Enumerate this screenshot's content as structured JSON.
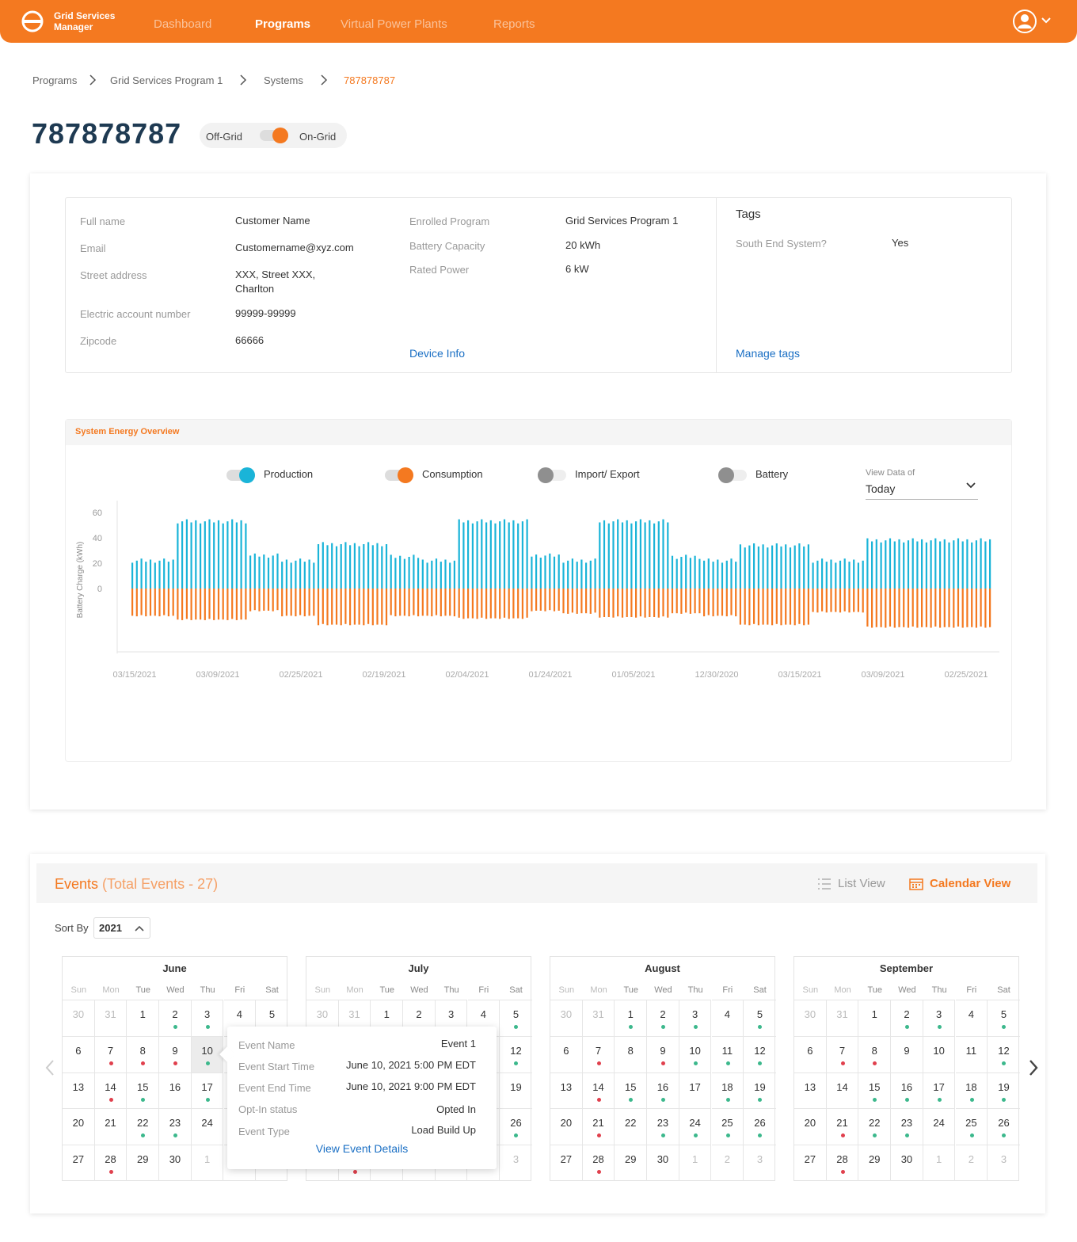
{
  "app": {
    "name_line1": "Grid Services",
    "name_line2": "Manager"
  },
  "nav": [
    {
      "label": "Dashboard",
      "active": false
    },
    {
      "label": "Programs",
      "active": true
    },
    {
      "label": "Virtual Power Plants",
      "active": false
    },
    {
      "label": "Reports",
      "active": false
    }
  ],
  "breadcrumb": [
    "Programs",
    "Grid Services Program 1",
    "Systems",
    "787878787"
  ],
  "system": {
    "id": "787878787",
    "toggle_off": "Off-Grid",
    "toggle_on": "On-Grid",
    "on_grid": true
  },
  "info": {
    "fields_left": [
      {
        "label": "Full name",
        "value": "Customer Name"
      },
      {
        "label": "Email",
        "value": "Customername@xyz.com"
      },
      {
        "label": "Street address",
        "value": "XXX, Street XXX,",
        "value2": "Charlton"
      },
      {
        "label": "Electric account number",
        "value": "99999-99999"
      },
      {
        "label": "Zipcode",
        "value": "66666"
      }
    ],
    "fields_mid": [
      {
        "label": "Enrolled Program",
        "value": "Grid Services Program 1"
      },
      {
        "label": "Battery Capacity",
        "value": "20 kWh"
      },
      {
        "label": "Rated Power",
        "value": "6 kW"
      }
    ],
    "device_link": "Device Info",
    "tags_title": "Tags",
    "tag": {
      "label": "South End System?",
      "value": "Yes"
    },
    "tags_link": "Manage tags"
  },
  "overview": {
    "title": "System Energy Overview",
    "legend": [
      {
        "label": "Production",
        "on": true,
        "color": "#1ab4d8"
      },
      {
        "label": "Consumption",
        "on": true,
        "color": "#f47920"
      },
      {
        "label": "Import/ Export",
        "on": false,
        "color": "#8f8f8f"
      },
      {
        "label": "Battery",
        "on": false,
        "color": "#8f8f8f"
      }
    ],
    "view_label": "View Data of",
    "view_value": "Today"
  },
  "chart_data": {
    "type": "bar",
    "ylabel": "Battery Charge (kWh)",
    "yticks": [
      0,
      20,
      40,
      60
    ],
    "ylim": [
      -35,
      60
    ],
    "xtick_labels": [
      "03/15/2021",
      "03/09/2021",
      "02/25/2021",
      "02/19/2021",
      "02/04/2021",
      "01/24/2021",
      "01/05/2021",
      "12/30/2020",
      "03/15/2021",
      "03/09/2021",
      "02/25/2021"
    ],
    "series": [
      {
        "name": "Production",
        "color": "#1ab4d8",
        "segments": [
          {
            "bars": 10,
            "value": 22
          },
          {
            "bars": 16,
            "value": 53
          },
          {
            "bars": 7,
            "value": 26
          },
          {
            "bars": 8,
            "value": 22
          },
          {
            "bars": 16,
            "value": 35
          },
          {
            "bars": 7,
            "value": 25
          },
          {
            "bars": 8,
            "value": 22
          },
          {
            "bars": 16,
            "value": 53
          },
          {
            "bars": 7,
            "value": 26
          },
          {
            "bars": 8,
            "value": 22
          },
          {
            "bars": 16,
            "value": 53
          },
          {
            "bars": 7,
            "value": 25
          },
          {
            "bars": 8,
            "value": 22
          },
          {
            "bars": 16,
            "value": 34
          },
          {
            "bars": 12,
            "value": 22
          },
          {
            "bars": 28,
            "value": 38
          }
        ]
      },
      {
        "name": "Consumption",
        "color": "#f47920",
        "segments": [
          {
            "bars": 10,
            "value": -21
          },
          {
            "bars": 16,
            "value": -24
          },
          {
            "bars": 7,
            "value": -17
          },
          {
            "bars": 8,
            "value": -21
          },
          {
            "bars": 16,
            "value": -28
          },
          {
            "bars": 7,
            "value": -21
          },
          {
            "bars": 8,
            "value": -21
          },
          {
            "bars": 16,
            "value": -23
          },
          {
            "bars": 7,
            "value": -17
          },
          {
            "bars": 8,
            "value": -19
          },
          {
            "bars": 16,
            "value": -22
          },
          {
            "bars": 7,
            "value": -19
          },
          {
            "bars": 8,
            "value": -21
          },
          {
            "bars": 16,
            "value": -28
          },
          {
            "bars": 12,
            "value": -18
          },
          {
            "bars": 28,
            "value": -30
          }
        ]
      }
    ]
  },
  "events": {
    "title": "Events",
    "total": "(Total Events - 27)",
    "list_view": "List View",
    "calendar_view": "Calendar View",
    "sort_label": "Sort By",
    "sort_value": "2021",
    "weekdays": [
      "Sun",
      "Mon",
      "Tue",
      "Wed",
      "Thu",
      "Fri",
      "Sat"
    ],
    "months": [
      {
        "name": "June",
        "days": [
          [
            "30",
            "",
            1
          ],
          [
            "31",
            "",
            1
          ],
          [
            "1",
            "",
            0
          ],
          [
            "2",
            "g",
            0
          ],
          [
            "3",
            "g",
            0
          ],
          [
            "4",
            "",
            0
          ],
          [
            "5",
            "",
            0
          ],
          [
            "6",
            "",
            0
          ],
          [
            "7",
            "r",
            0
          ],
          [
            "8",
            "r",
            0
          ],
          [
            "9",
            "r",
            0
          ],
          [
            "10",
            "g",
            2
          ],
          [
            "11",
            "",
            0
          ],
          [
            "12",
            "",
            0
          ],
          [
            "13",
            "",
            0
          ],
          [
            "14",
            "r",
            0
          ],
          [
            "15",
            "g",
            0
          ],
          [
            "16",
            "",
            0
          ],
          [
            "17",
            "g",
            0
          ],
          [
            "18",
            "",
            0
          ],
          [
            "19",
            "",
            0
          ],
          [
            "20",
            "",
            0
          ],
          [
            "21",
            "",
            0
          ],
          [
            "22",
            "g",
            0
          ],
          [
            "23",
            "g",
            0
          ],
          [
            "24",
            "",
            0
          ],
          [
            "25",
            "",
            0
          ],
          [
            "26",
            "",
            0
          ],
          [
            "27",
            "",
            0
          ],
          [
            "28",
            "r",
            0
          ],
          [
            "29",
            "",
            0
          ],
          [
            "30",
            "",
            0
          ],
          [
            "1",
            "",
            1
          ],
          [
            "2",
            "",
            1
          ],
          [
            "3",
            "",
            1
          ]
        ]
      },
      {
        "name": "July",
        "days": [
          [
            "30",
            "",
            1
          ],
          [
            "31",
            "",
            1
          ],
          [
            "1",
            "",
            0
          ],
          [
            "2",
            "",
            0
          ],
          [
            "3",
            "",
            0
          ],
          [
            "4",
            "",
            0
          ],
          [
            "5",
            "g",
            0
          ],
          [
            "6",
            "",
            0
          ],
          [
            "7",
            "",
            0
          ],
          [
            "8",
            "",
            0
          ],
          [
            "9",
            "",
            0
          ],
          [
            "10",
            "",
            0
          ],
          [
            "11",
            "",
            0
          ],
          [
            "12",
            "g",
            0
          ],
          [
            "13",
            "",
            0
          ],
          [
            "14",
            "",
            0
          ],
          [
            "15",
            "",
            0
          ],
          [
            "16",
            "",
            0
          ],
          [
            "17",
            "",
            0
          ],
          [
            "18",
            "",
            0
          ],
          [
            "19",
            "",
            0
          ],
          [
            "20",
            "",
            0
          ],
          [
            "21",
            "",
            0
          ],
          [
            "22",
            "",
            0
          ],
          [
            "23",
            "",
            0
          ],
          [
            "24",
            "",
            0
          ],
          [
            "25",
            "",
            0
          ],
          [
            "26",
            "g",
            0
          ],
          [
            "27",
            "",
            0
          ],
          [
            "28",
            "r",
            0
          ],
          [
            "29",
            "",
            0
          ],
          [
            "30",
            "",
            0
          ],
          [
            "1",
            "",
            1
          ],
          [
            "2",
            "",
            1
          ],
          [
            "3",
            "",
            1
          ]
        ]
      },
      {
        "name": "August",
        "days": [
          [
            "30",
            "",
            1
          ],
          [
            "31",
            "",
            1
          ],
          [
            "1",
            "g",
            0
          ],
          [
            "2",
            "g",
            0
          ],
          [
            "3",
            "g",
            0
          ],
          [
            "4",
            "",
            0
          ],
          [
            "5",
            "g",
            0
          ],
          [
            "6",
            "",
            0
          ],
          [
            "7",
            "r",
            0
          ],
          [
            "8",
            "",
            0
          ],
          [
            "9",
            "r",
            0
          ],
          [
            "10",
            "g",
            0
          ],
          [
            "11",
            "g",
            0
          ],
          [
            "12",
            "g",
            0
          ],
          [
            "13",
            "",
            0
          ],
          [
            "14",
            "r",
            0
          ],
          [
            "15",
            "g",
            0
          ],
          [
            "16",
            "g",
            0
          ],
          [
            "17",
            "",
            0
          ],
          [
            "18",
            "g",
            0
          ],
          [
            "19",
            "g",
            0
          ],
          [
            "20",
            "",
            0
          ],
          [
            "21",
            "r",
            0
          ],
          [
            "22",
            "",
            0
          ],
          [
            "23",
            "g",
            0
          ],
          [
            "24",
            "g",
            0
          ],
          [
            "25",
            "g",
            0
          ],
          [
            "26",
            "g",
            0
          ],
          [
            "27",
            "",
            0
          ],
          [
            "28",
            "r",
            0
          ],
          [
            "29",
            "",
            0
          ],
          [
            "30",
            "",
            0
          ],
          [
            "1",
            "",
            1
          ],
          [
            "2",
            "",
            1
          ],
          [
            "3",
            "",
            1
          ]
        ]
      },
      {
        "name": "September",
        "days": [
          [
            "30",
            "",
            1
          ],
          [
            "31",
            "",
            1
          ],
          [
            "1",
            "",
            0
          ],
          [
            "2",
            "g",
            0
          ],
          [
            "3",
            "g",
            0
          ],
          [
            "4",
            "",
            0
          ],
          [
            "5",
            "g",
            0
          ],
          [
            "6",
            "",
            0
          ],
          [
            "7",
            "r",
            0
          ],
          [
            "8",
            "r",
            0
          ],
          [
            "9",
            "",
            0
          ],
          [
            "10",
            "",
            0
          ],
          [
            "11",
            "",
            0
          ],
          [
            "12",
            "g",
            0
          ],
          [
            "13",
            "",
            0
          ],
          [
            "14",
            "",
            0
          ],
          [
            "15",
            "g",
            0
          ],
          [
            "16",
            "g",
            0
          ],
          [
            "17",
            "g",
            0
          ],
          [
            "18",
            "g",
            0
          ],
          [
            "19",
            "g",
            0
          ],
          [
            "20",
            "",
            0
          ],
          [
            "21",
            "r",
            0
          ],
          [
            "22",
            "g",
            0
          ],
          [
            "23",
            "g",
            0
          ],
          [
            "24",
            "",
            0
          ],
          [
            "25",
            "g",
            0
          ],
          [
            "26",
            "g",
            0
          ],
          [
            "27",
            "",
            0
          ],
          [
            "28",
            "r",
            0
          ],
          [
            "29",
            "",
            0
          ],
          [
            "30",
            "",
            0
          ],
          [
            "1",
            "",
            1
          ],
          [
            "2",
            "",
            1
          ],
          [
            "3",
            "",
            1
          ]
        ]
      }
    ],
    "tooltip": {
      "rows": [
        {
          "label": "Event Name",
          "value": "Event 1"
        },
        {
          "label": "Event Start Time",
          "value": "June 10, 2021 5:00 PM EDT"
        },
        {
          "label": "Event End Time",
          "value": "June 10, 2021 9:00 PM EDT"
        },
        {
          "label": "Opt-In status",
          "value": "Opted In"
        },
        {
          "label": "Event Type",
          "value": "Load Build Up"
        }
      ],
      "link": "View Event Details"
    }
  },
  "colors": {
    "brand": "#f47920",
    "link": "#1a6fc4",
    "production": "#1ab4d8",
    "consumption": "#f47920",
    "event_green": "#3cb88c",
    "event_red": "#e0404d"
  }
}
